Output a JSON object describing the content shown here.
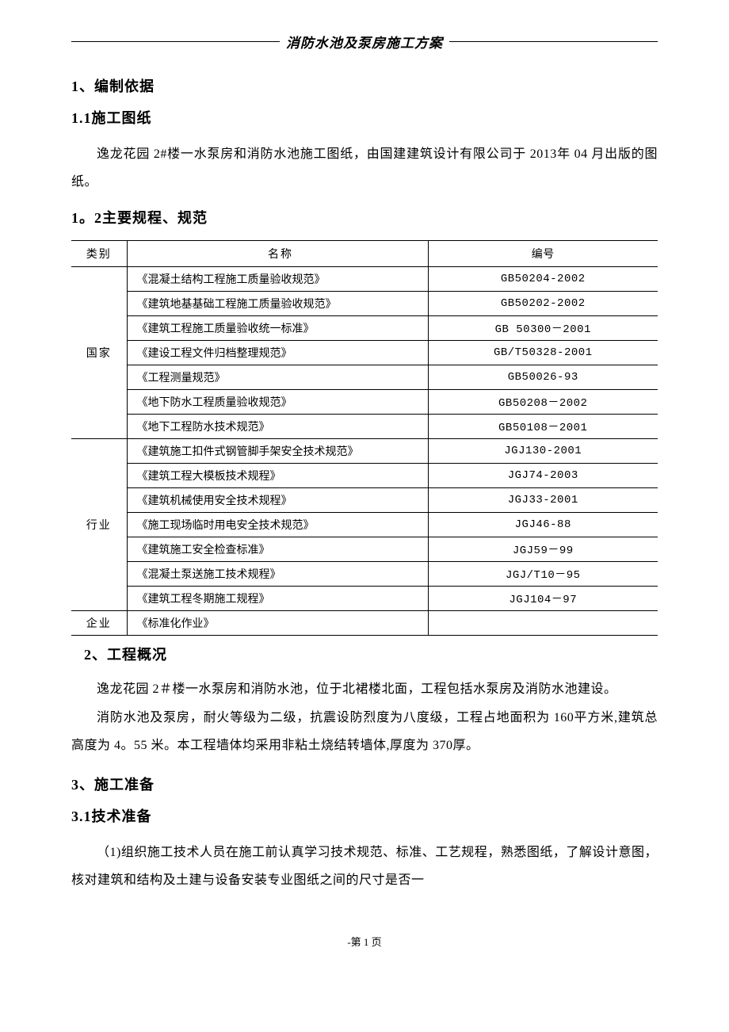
{
  "header": {
    "title": "消防水池及泵房施工方案"
  },
  "sections": {
    "s1": {
      "title": "1、编制依据",
      "sub1": {
        "title": "1.1施工图纸",
        "text": "逸龙花园 2#楼一水泵房和消防水池施工图纸，由国建建筑设计有限公司于 2013年 04 月出版的图纸。"
      },
      "sub2": {
        "title": "1。2主要规程、规范"
      }
    },
    "s2": {
      "title": "2、工程概况",
      "p1": "逸龙花园 2＃楼一水泵房和消防水池，位于北裙楼北面，工程包括水泵房及消防水池建设。",
      "p2": "消防水池及泵房，耐火等级为二级，抗震设防烈度为八度级，工程占地面积为 160平方米,建筑总高度为 4。55 米。本工程墙体均采用非粘土烧结转墙体,厚度为 370厚。"
    },
    "s3": {
      "title": "3、施工准备",
      "sub1": {
        "title": "3.1技术准备",
        "p1": "（1)组织施工技术人员在施工前认真学习技术规范、标准、工艺规程，熟悉图纸，了解设计意图，核对建筑和结构及土建与设备安装专业图纸之间的尺寸是否一"
      }
    }
  },
  "table": {
    "headers": {
      "category": "类别",
      "name": "名称",
      "code": "编号"
    },
    "groups": [
      {
        "category": "国家",
        "rows": [
          {
            "name": "《混凝土结构工程施工质量验收规范》",
            "code": "GB50204-2002"
          },
          {
            "name": "《建筑地基基础工程施工质量验收规范》",
            "code": "GB50202-2002"
          },
          {
            "name": "《建筑工程施工质量验收统一标准》",
            "code": "GB 50300－2001"
          },
          {
            "name": "《建设工程文件归档整理规范》",
            "code": "GB/T50328-2001"
          },
          {
            "name": "《工程测量规范》",
            "code": "GB50026-93"
          },
          {
            "name": "《地下防水工程质量验收规范》",
            "code": "GB50208－2002"
          },
          {
            "name": "《地下工程防水技术规范》",
            "code": "GB50108－2001"
          }
        ]
      },
      {
        "category": "行业",
        "rows": [
          {
            "name": "《建筑施工扣件式钢管脚手架安全技术规范》",
            "code": "JGJ130-2001"
          },
          {
            "name": "《建筑工程大模板技术规程》",
            "code": "JGJ74-2003"
          },
          {
            "name": "《建筑机械使用安全技术规程》",
            "code": "JGJ33-2001"
          },
          {
            "name": "《施工现场临时用电安全技术规范》",
            "code": "JGJ46-88"
          },
          {
            "name": "《建筑施工安全检查标准》",
            "code": "JGJ59－99"
          },
          {
            "name": "《混凝土泵送施工技术规程》",
            "code": "JGJ/T10－95"
          },
          {
            "name": "《建筑工程冬期施工规程》",
            "code": "JGJ104－97"
          }
        ]
      },
      {
        "category": "企业",
        "rows": [
          {
            "name": "《标准化作业》",
            "code": ""
          }
        ]
      }
    ]
  },
  "footer": {
    "text": "-第 1 页"
  }
}
